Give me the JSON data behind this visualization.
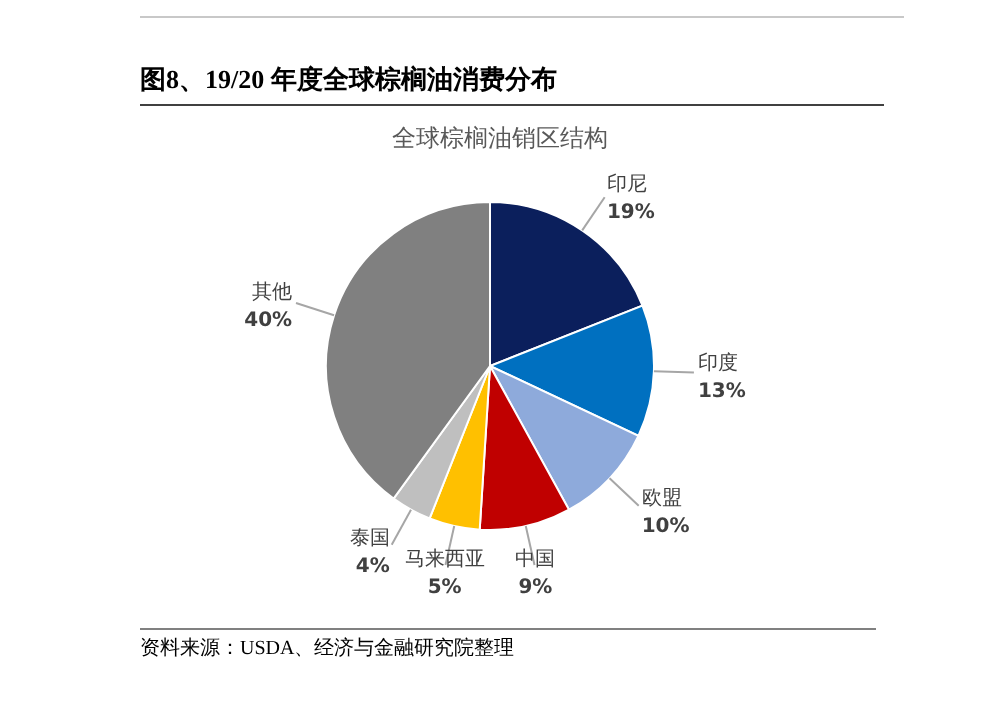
{
  "chart_data": {
    "type": "pie",
    "title": "图8、19/20 年度全球棕榈油消费分布",
    "subtitle": "全球棕榈油销区结构",
    "categories": [
      "印尼",
      "印度",
      "欧盟",
      "中国",
      "马来西亚",
      "泰国",
      "其他"
    ],
    "values": [
      19,
      13,
      10,
      9,
      5,
      4,
      40
    ],
    "value_labels": [
      "19%",
      "13%",
      "10%",
      "9%",
      "5%",
      "4%",
      "40%"
    ],
    "colors": [
      "#0b1f5c",
      "#0070c0",
      "#8eaadb",
      "#c00000",
      "#ffc000",
      "#bfbfbf",
      "#808080"
    ],
    "legend": false,
    "annotations": [
      "资料来源：USDA、经济与金融研究院整理"
    ]
  }
}
